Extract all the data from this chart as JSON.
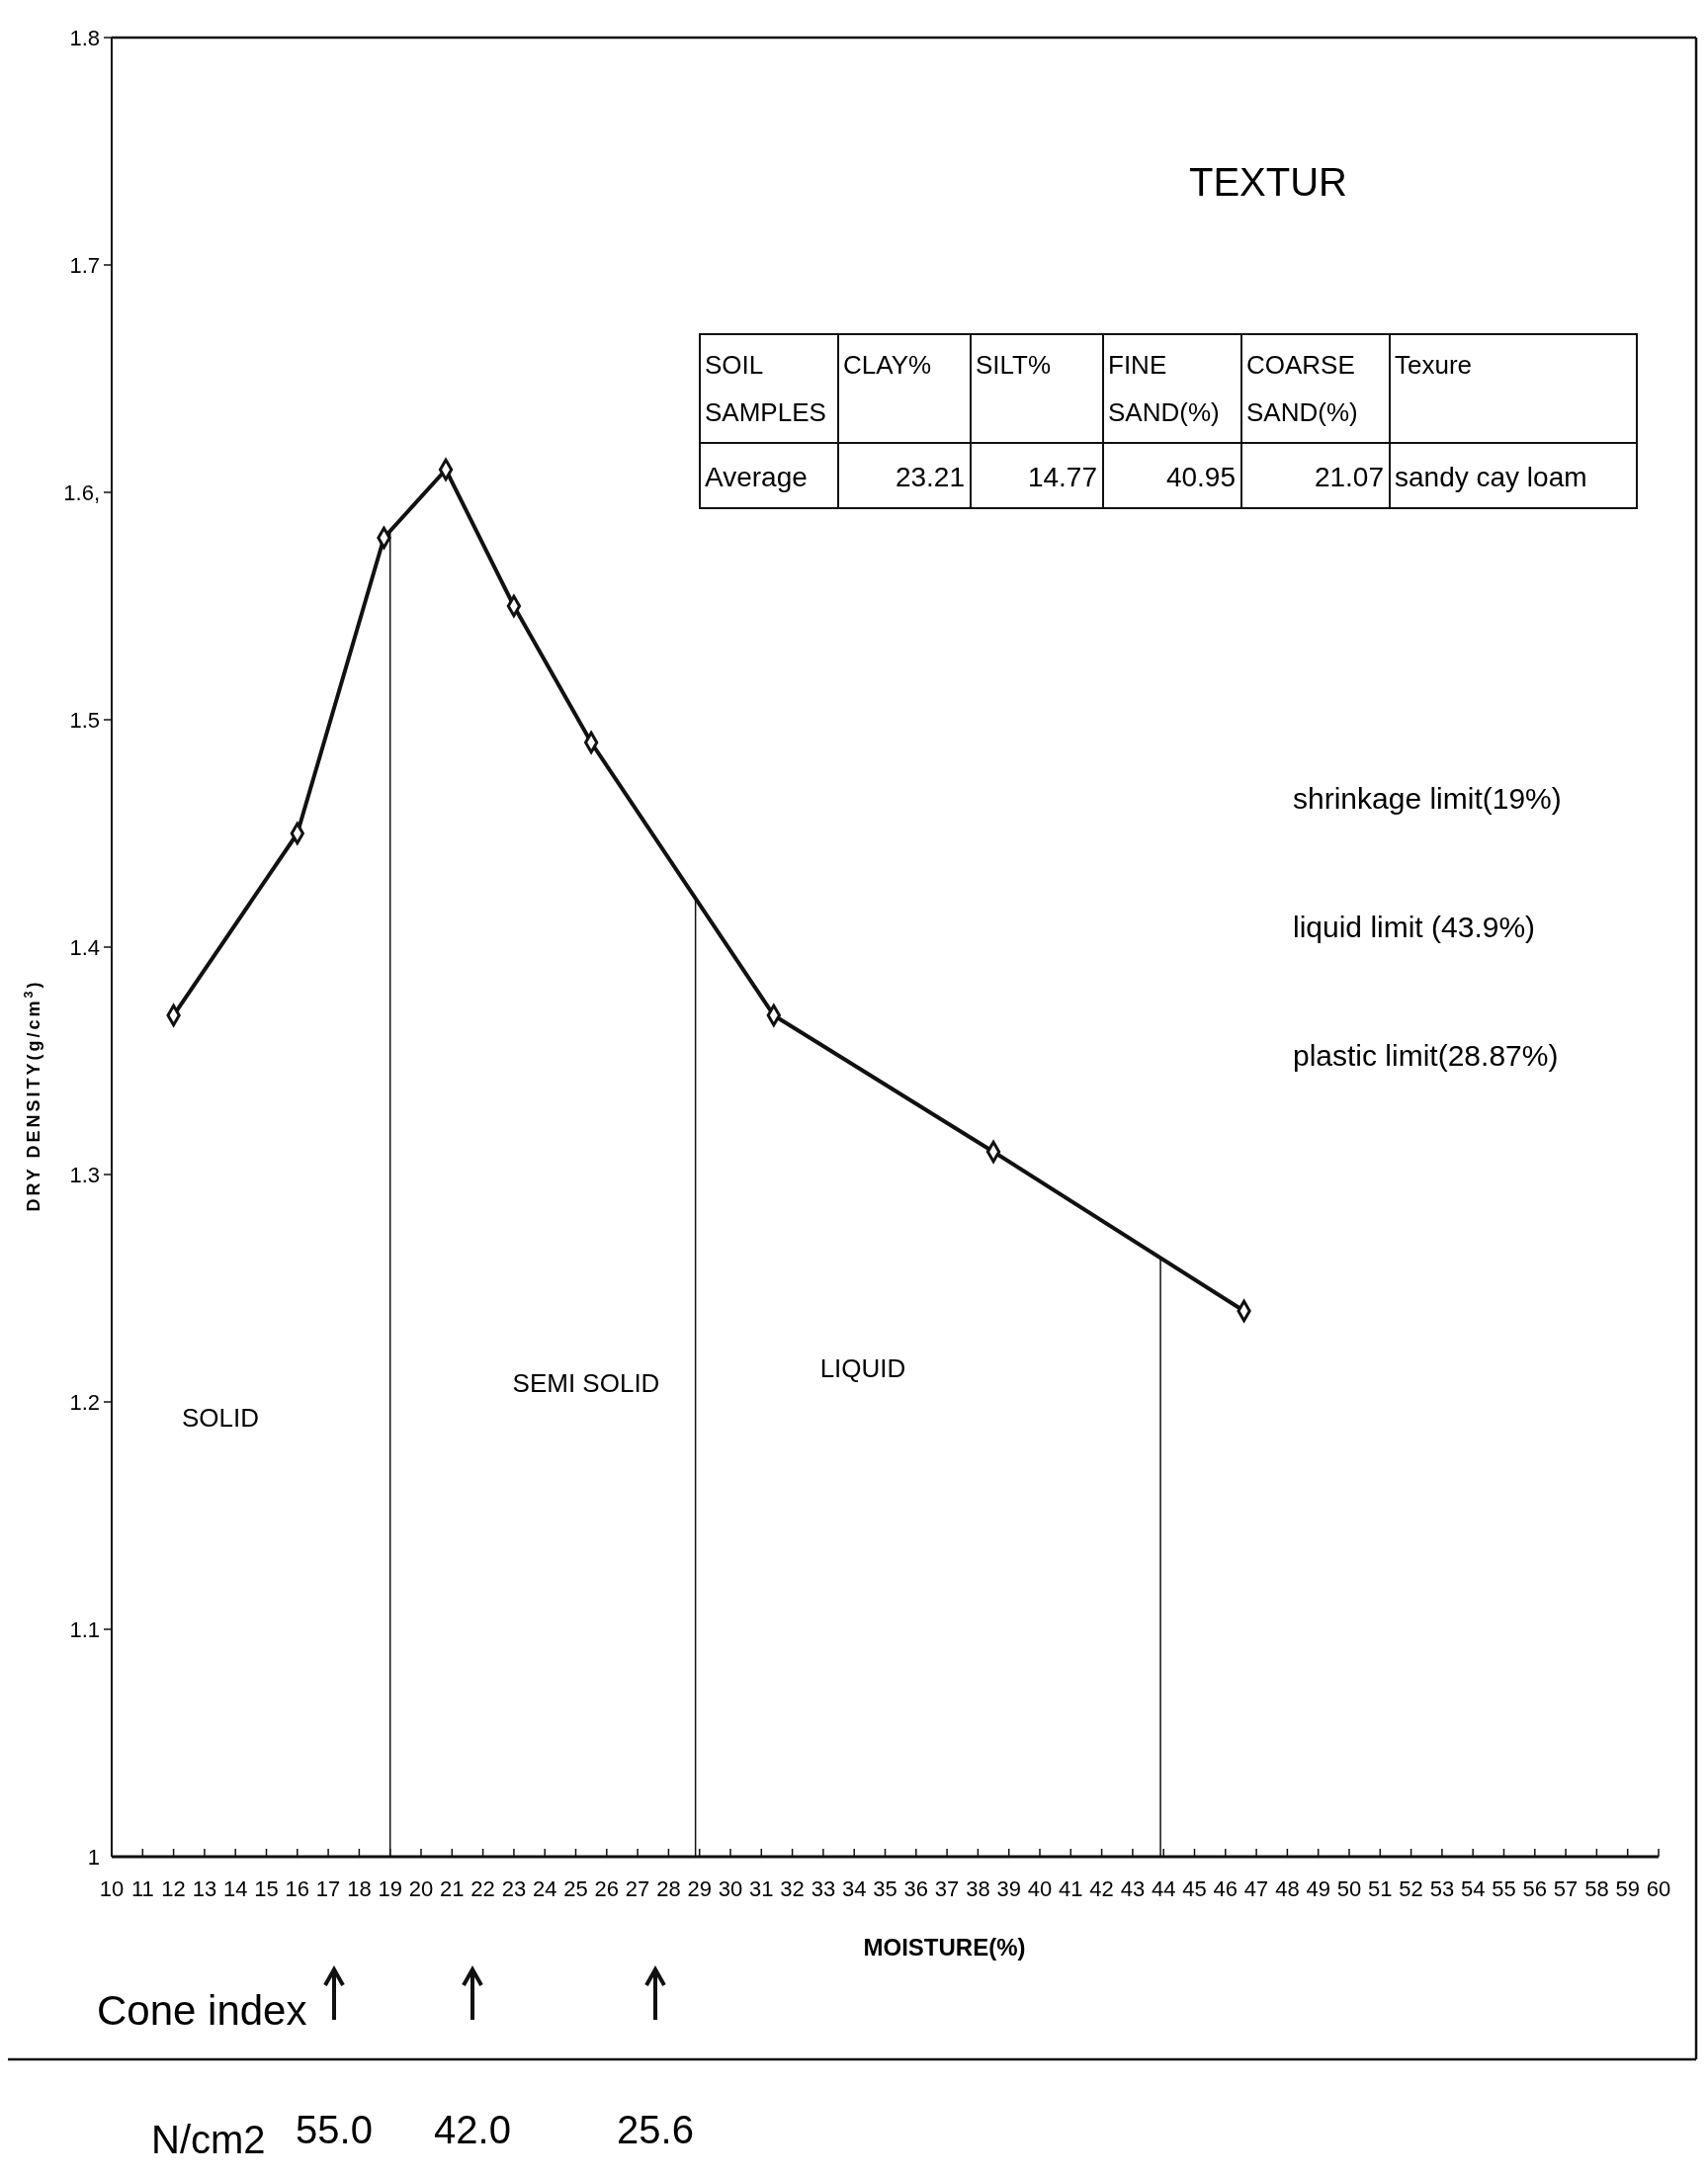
{
  "chart_data": {
    "type": "line",
    "xlabel": "MOISTURE(%)",
    "ylabel": "DRY DENSITY(g/cm$^{3}$)",
    "x": [
      12,
      16,
      18.8,
      20.8,
      23,
      25.5,
      31.4,
      38.5,
      46.6
    ],
    "series": [
      {
        "color": "#111111",
        "values": [
          1.37,
          1.45,
          1.58,
          1.61,
          1.55,
          1.49,
          1.37,
          1.31,
          1.24
        ]
      }
    ],
    "xlim": [
      10,
      60
    ],
    "xticks": [
      10,
      11,
      12,
      13,
      14,
      15,
      16,
      17,
      18,
      19,
      20,
      21,
      22,
      23,
      24,
      25,
      26,
      27,
      28,
      29,
      30,
      31,
      32,
      33,
      34,
      35,
      36,
      37,
      38,
      39,
      40,
      41,
      42,
      43,
      44,
      45,
      46,
      47,
      48,
      49,
      50,
      51,
      52,
      53,
      54,
      55,
      56,
      57,
      58,
      59,
      60
    ],
    "ylim": [
      1,
      1.8
    ],
    "yticks": [
      1,
      1.1,
      1.2,
      1.3,
      1.4,
      1.5,
      {
        "value": 1.6,
        "label": "1.6,"
      },
      1.7,
      1.8
    ],
    "ref_lines": [
      {
        "axis": "x",
        "value": 19,
        "color": "#111111"
      },
      {
        "axis": "x",
        "value": 28.87,
        "color": "#111111"
      },
      {
        "axis": "x",
        "value": 43.9,
        "color": "#111111"
      }
    ],
    "marker": "diamond",
    "line_style": "solid",
    "grid": false,
    "annotations": [
      "TEXTUR",
      "SOIL SAMPLES",
      "CLAY%",
      "SILT%",
      "FINE SAND(%)",
      "COARSE SAND(%)",
      "Texure",
      "Average",
      "23.21",
      "14.77",
      "40.95",
      "21.07",
      "sandy cay loam",
      "shrinkage limit(19%)",
      "liquid limit (43.9%)",
      "plastic limit(28.87%)",
      "SOLID",
      "SEMI SOLID",
      "LIQUID",
      "Cone index",
      "N/cm2",
      "55.0",
      "42.0",
      "25.6"
    ]
  }
}
